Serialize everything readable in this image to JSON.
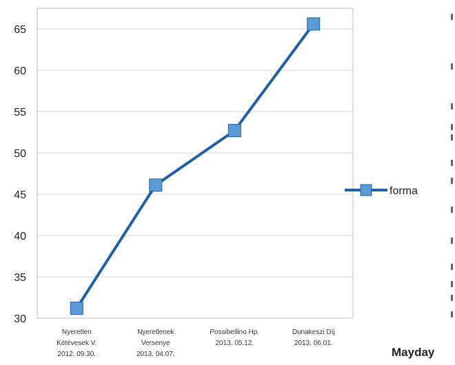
{
  "chart_data": {
    "type": "line",
    "categories": [
      [
        "Nyeretlen",
        "Kétévesek V.",
        "2012. 09.30."
      ],
      [
        "Nyeretlenek",
        "Versenye",
        "2013. 04.07."
      ],
      [
        "Possibellino Hp.",
        "2013. 05.12."
      ],
      [
        "Dunakeszi Díj",
        "2013. 06.01."
      ]
    ],
    "series": [
      {
        "name": "forma",
        "values": [
          31.2,
          46.1,
          52.7,
          65.6
        ]
      }
    ],
    "ylim": [
      30,
      67.5
    ],
    "yticks": [
      30,
      35,
      40,
      45,
      50,
      55,
      60,
      65
    ],
    "grid": true,
    "legend": "right",
    "title": "",
    "xlabel": "",
    "ylabel": ""
  },
  "colors": {
    "line": "#1f5fa3",
    "marker": "#5b9bd5",
    "grid": "#d9d9d9",
    "axis": "#bfbfbf"
  },
  "footer_text": "Mayday"
}
